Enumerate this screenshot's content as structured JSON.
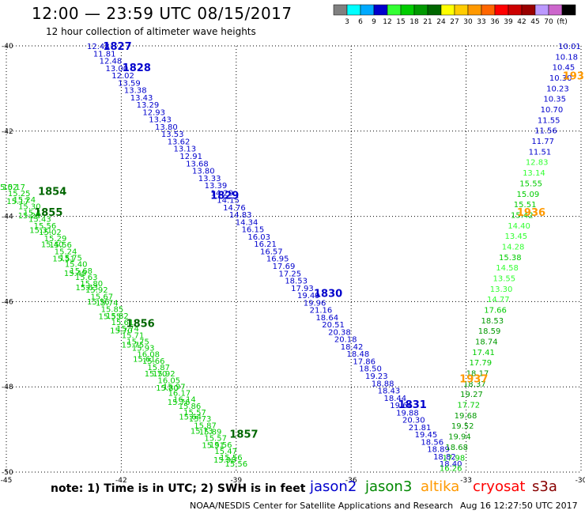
{
  "title": "12:00 — 23:59 UTC 08/15/2017",
  "subtitle": "12 hour collection of altimeter wave heights",
  "note": "note: 1) Time is in UTC; 2) SWH is in feet",
  "legend_satellites": [
    {
      "name": "jason2",
      "color": "#0000cc"
    },
    {
      "name": "jason3",
      "color": "#008800"
    },
    {
      "name": "altika",
      "color": "#ff9900"
    },
    {
      "name": "cryosat",
      "color": "#ff0000"
    },
    {
      "name": "s3a",
      "color": "#880000"
    }
  ],
  "credit": "NOAA/NESDIS Center for Satellite Applications and Research",
  "timestamp": "Aug 16 12:27:50 UTC 2017",
  "color_scale": {
    "colors": [
      "#808080",
      "#00ffff",
      "#00aaff",
      "#0000cc",
      "#33ff33",
      "#00cc00",
      "#009900",
      "#006600",
      "#ffff00",
      "#ffcc00",
      "#ff9900",
      "#ff6600",
      "#ff0000",
      "#cc0000",
      "#990000",
      "#bb99ff",
      "#cc66cc",
      "#000000"
    ],
    "labels": [
      "3",
      "6",
      "9",
      "12",
      "15",
      "18",
      "21",
      "24",
      "27",
      "30",
      "33",
      "36",
      "39",
      "42",
      "45",
      "70",
      "(ft)"
    ]
  },
  "chart_data": {
    "type": "scatter",
    "xlabel": "",
    "ylabel": "",
    "xlim": [
      -45,
      -30
    ],
    "ylim": [
      -50,
      -40
    ],
    "x_ticks": [
      -45,
      -42,
      -39,
      -36,
      -33,
      -30
    ],
    "x_tick_labels": [
      "-45",
      "-42",
      "-39",
      "-36",
      "-33",
      "-30"
    ],
    "y_ticks": [
      -40,
      -42,
      -44,
      -46,
      -48,
      -50
    ],
    "y_tick_labels": [
      "-40",
      "-42",
      "-44",
      "-46",
      "-48",
      "-50"
    ],
    "grid": true,
    "tracks": [
      {
        "satellite": "jason2",
        "start": [
          -42.6,
          -40.0
        ],
        "end": [
          -33.4,
          -49.8
        ],
        "labels": [
          {
            "text": "1827",
            "lon": -42.1,
            "lat": -40.0
          },
          {
            "text": "1828",
            "lon": -41.6,
            "lat": -40.5
          },
          {
            "text": "1829",
            "lon": -39.3,
            "lat": -43.5
          },
          {
            "text": "1830",
            "lon": -36.6,
            "lat": -45.8
          },
          {
            "text": "1831",
            "lon": -34.4,
            "lat": -48.4
          }
        ],
        "values": [
          12.48,
          11.81,
          12.48,
          13.0,
          12.02,
          13.59,
          13.38,
          13.43,
          13.29,
          12.93,
          13.43,
          13.8,
          13.53,
          13.62,
          13.13,
          12.91,
          13.68,
          13.8,
          13.33,
          13.39,
          14.29,
          14.15,
          14.76,
          14.83,
          14.34,
          16.15,
          16.03,
          16.21,
          16.57,
          16.95,
          17.69,
          17.25,
          18.53,
          17.93,
          19.49,
          19.96,
          21.16,
          18.64,
          20.51,
          20.38,
          20.18,
          18.42,
          18.48,
          17.86,
          18.5,
          19.23,
          18.88,
          18.43,
          18.44,
          19.66,
          19.88,
          20.3,
          21.81,
          19.45,
          18.56,
          18.89,
          18.82,
          18.4
        ]
      },
      {
        "satellite": "jason3",
        "start": [
          -44.8,
          -43.3
        ],
        "end": [
          -39.0,
          -49.8
        ],
        "labels": [
          {
            "text": "1854",
            "lon": -43.8,
            "lat": -43.4
          },
          {
            "text": "1855",
            "lon": -43.9,
            "lat": -43.9
          },
          {
            "text": "1856",
            "lon": -41.5,
            "lat": -46.5
          },
          {
            "text": "1857",
            "lon": -38.8,
            "lat": -49.1
          }
        ],
        "values": [
          15.17,
          15.25,
          15.24,
          15.3,
          15.41,
          15.43,
          15.56,
          15.02,
          15.29,
          15.56,
          15.24,
          15.75,
          15.4,
          15.68,
          15.63,
          15.8,
          15.92,
          15.67,
          15.74,
          15.85,
          15.82,
          15.61,
          15.74,
          15.71,
          15.75,
          15.93,
          16.08,
          15.66,
          15.87,
          15.92,
          16.05,
          15.97,
          16.17,
          16.14,
          15.86,
          15.57,
          15.73,
          15.87,
          15.89,
          15.57,
          15.56,
          15.47,
          15.56,
          15.56
        ]
      },
      {
        "satellite": "jason3",
        "start": [
          -45.0,
          -43.3
        ],
        "end": [
          -39.3,
          -49.7
        ],
        "labels": [],
        "values": [
          15.02,
          15.17,
          15.28,
          15.31,
          15.4,
          15.51,
          15.49,
          15.63,
          15.56,
          15.55,
          15.7,
          15.75,
          15.61,
          15.7,
          15.8,
          15.76,
          15.64,
          15.73,
          15.91,
          15.98
        ]
      },
      {
        "satellite": "jason3",
        "start": [
          -33.4,
          -49.9
        ],
        "end": [
          -30.3,
          -40.0
        ],
        "labels": [],
        "values": [
          16.26,
          17.98,
          18.68,
          19.94,
          19.52,
          19.68,
          17.72,
          19.27,
          18.37,
          18.17,
          17.79,
          17.41,
          18.74,
          18.59,
          18.53,
          17.66,
          14.77,
          13.3,
          13.55,
          14.58,
          15.38,
          14.28,
          13.45,
          14.4,
          15.42,
          15.51,
          15.09,
          15.55,
          13.14,
          12.83,
          11.51,
          11.77,
          11.56,
          11.55,
          10.7,
          10.35,
          10.23,
          10.3,
          10.45,
          10.18,
          10.01
        ]
      },
      {
        "satellite": "altika",
        "start": [
          -33.0,
          -50.0
        ],
        "end": [
          -30.0,
          -40.0
        ],
        "labels": [
          {
            "text": "1936",
            "lon": -31.3,
            "lat": -43.9
          },
          {
            "text": "1937",
            "lon": -32.8,
            "lat": -47.8
          },
          {
            "text": "193",
            "lon": -30.2,
            "lat": -40.7
          }
        ],
        "values": []
      }
    ]
  }
}
